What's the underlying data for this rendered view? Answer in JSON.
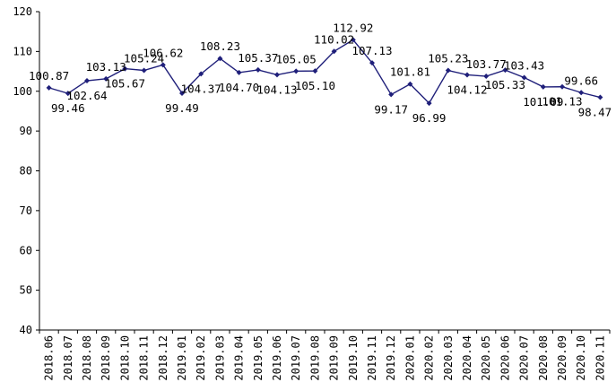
{
  "chart_data": {
    "type": "line",
    "title": "",
    "xlabel": "",
    "ylabel": "",
    "ylim": [
      40,
      120
    ],
    "yticks": [
      40,
      50,
      60,
      70,
      80,
      90,
      100,
      110,
      120
    ],
    "grid": false,
    "legend": "none",
    "line_color": "#1f1f7a",
    "categories": [
      "2018.06",
      "2018.07",
      "2018.08",
      "2018.09",
      "2018.10",
      "2018.11",
      "2018.12",
      "2019.01",
      "2019.02",
      "2019.03",
      "2019.04",
      "2019.05",
      "2019.06",
      "2019.07",
      "2019.08",
      "2019.09",
      "2019.10",
      "2019.11",
      "2019.12",
      "2020.01",
      "2020.02",
      "2020.03",
      "2020.04",
      "2020.05",
      "2020.06",
      "2020.07",
      "2020.08",
      "2020.09",
      "2020.10",
      "2020.11"
    ],
    "values": [
      100.87,
      99.46,
      102.64,
      103.13,
      105.67,
      105.24,
      106.62,
      99.49,
      104.37,
      108.23,
      104.7,
      105.37,
      104.13,
      105.05,
      105.1,
      110.02,
      112.92,
      107.13,
      99.17,
      101.81,
      96.99,
      105.23,
      104.12,
      103.77,
      105.33,
      103.43,
      101.09,
      101.13,
      99.66,
      98.47
    ],
    "labels": [
      "100.87",
      "99.46",
      "102.64",
      "103.13",
      "105.67",
      "105.24",
      "106.62",
      "99.49",
      "104.37",
      "108.23",
      "104.70",
      "105.37",
      "104.13",
      "105.05",
      "105.10",
      "110.02",
      "112.92",
      "107.13",
      "99.17",
      "101.81",
      "96.99",
      "105.23",
      "104.12",
      "103.77",
      "105.33",
      "103.43",
      "101.09",
      "101.13",
      "99.66",
      "98.47"
    ]
  }
}
